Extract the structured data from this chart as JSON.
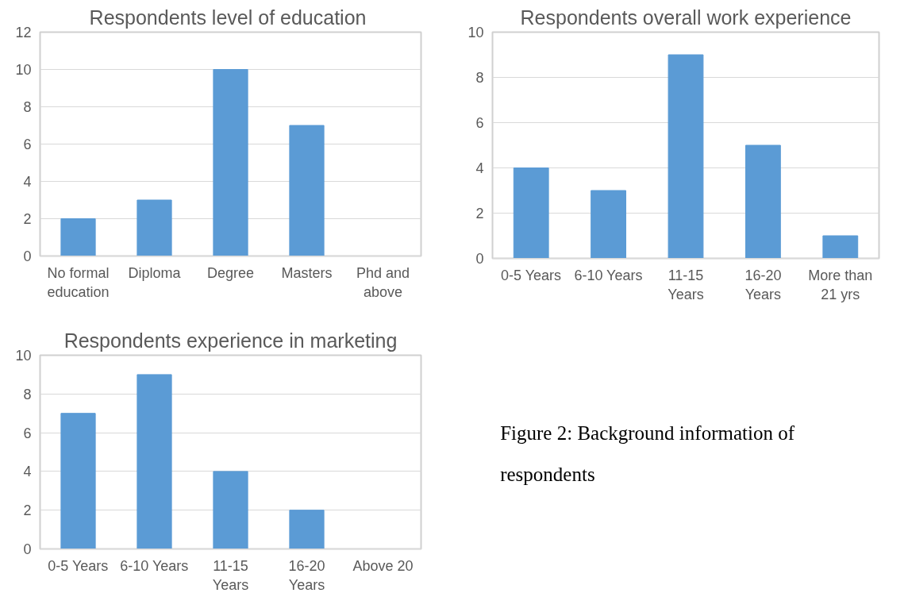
{
  "chart_data": [
    {
      "type": "bar",
      "title": "Respondents  level of education",
      "categories": [
        "No formal education",
        "Diploma",
        "Degree",
        "Masters",
        "Phd and above"
      ],
      "values": [
        2,
        3,
        10,
        7,
        0
      ],
      "color": "#5b9bd5",
      "ylim": [
        0,
        12
      ],
      "yticks": [
        0,
        2,
        4,
        6,
        8,
        10,
        12
      ],
      "grid": "y"
    },
    {
      "type": "bar",
      "title": "Respondents overall work experience",
      "categories": [
        "0-5 Years",
        "6-10 Years",
        "11-15 Years",
        "16-20 Years",
        "More than 21 yrs"
      ],
      "values": [
        4,
        3,
        9,
        5,
        1
      ],
      "color": "#5b9bd5",
      "ylim": [
        0,
        10
      ],
      "yticks": [
        0,
        2,
        4,
        6,
        8,
        10
      ],
      "grid": "y"
    },
    {
      "type": "bar",
      "title": "Respondents experience in marketing",
      "categories": [
        "0-5 Years",
        "6-10 Years",
        "11-15 Years",
        "16-20 Years",
        "Above 20"
      ],
      "values": [
        7,
        9,
        4,
        2,
        0
      ],
      "color": "#5b9bd5",
      "ylim": [
        0,
        10
      ],
      "yticks": [
        0,
        2,
        4,
        6,
        8,
        10
      ],
      "grid": "y"
    },
    {
      "type": "other",
      "annotations": [
        "Figure 2: Background information of respondents"
      ]
    }
  ]
}
